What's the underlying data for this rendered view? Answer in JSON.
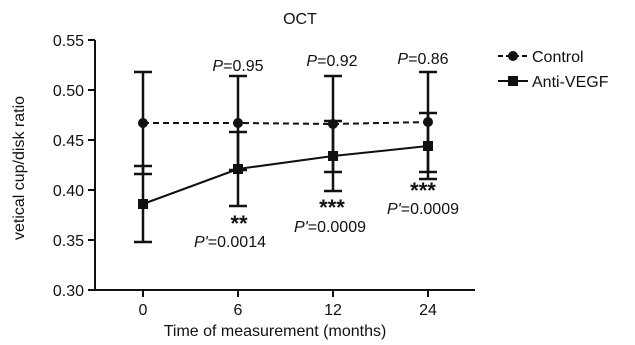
{
  "chart_data": {
    "type": "line",
    "title": "OCT",
    "xlabel": "Time of measurement (months)",
    "ylabel": "vetical cup/disk ratio",
    "categories": [
      "0",
      "6",
      "12",
      "24"
    ],
    "ylim": [
      0.3,
      0.55
    ],
    "yticks": [
      "0.30",
      "0.35",
      "0.40",
      "0.45",
      "0.50",
      "0.55"
    ],
    "legend_position": "top-right",
    "series": [
      {
        "name": "Control",
        "marker": "circle",
        "line_style": "dashed",
        "color": "#111111",
        "values": [
          0.467,
          0.467,
          0.466,
          0.468
        ],
        "error": [
          0.051,
          0.047,
          0.048,
          0.05
        ]
      },
      {
        "name": "Anti-VEGF",
        "marker": "square",
        "line_style": "solid",
        "color": "#111111",
        "values": [
          0.386,
          0.421,
          0.434,
          0.444
        ],
        "error": [
          0.038,
          0.037,
          0.035,
          0.033
        ]
      }
    ],
    "annotations": {
      "p_control": [
        {
          "category": "6",
          "label": "P",
          "value": "=0.95"
        },
        {
          "category": "12",
          "label": "P",
          "value": "=0.92"
        },
        {
          "category": "24",
          "label": "P",
          "value": "=0.86"
        }
      ],
      "p_prime": [
        {
          "category": "6",
          "label": "P'",
          "value": "=0.0014",
          "stars": "**"
        },
        {
          "category": "12",
          "label": "P'",
          "value": "=0.0009",
          "stars": "***"
        },
        {
          "category": "24",
          "label": "P'",
          "value": "=0.0009",
          "stars": "***"
        }
      ]
    }
  }
}
